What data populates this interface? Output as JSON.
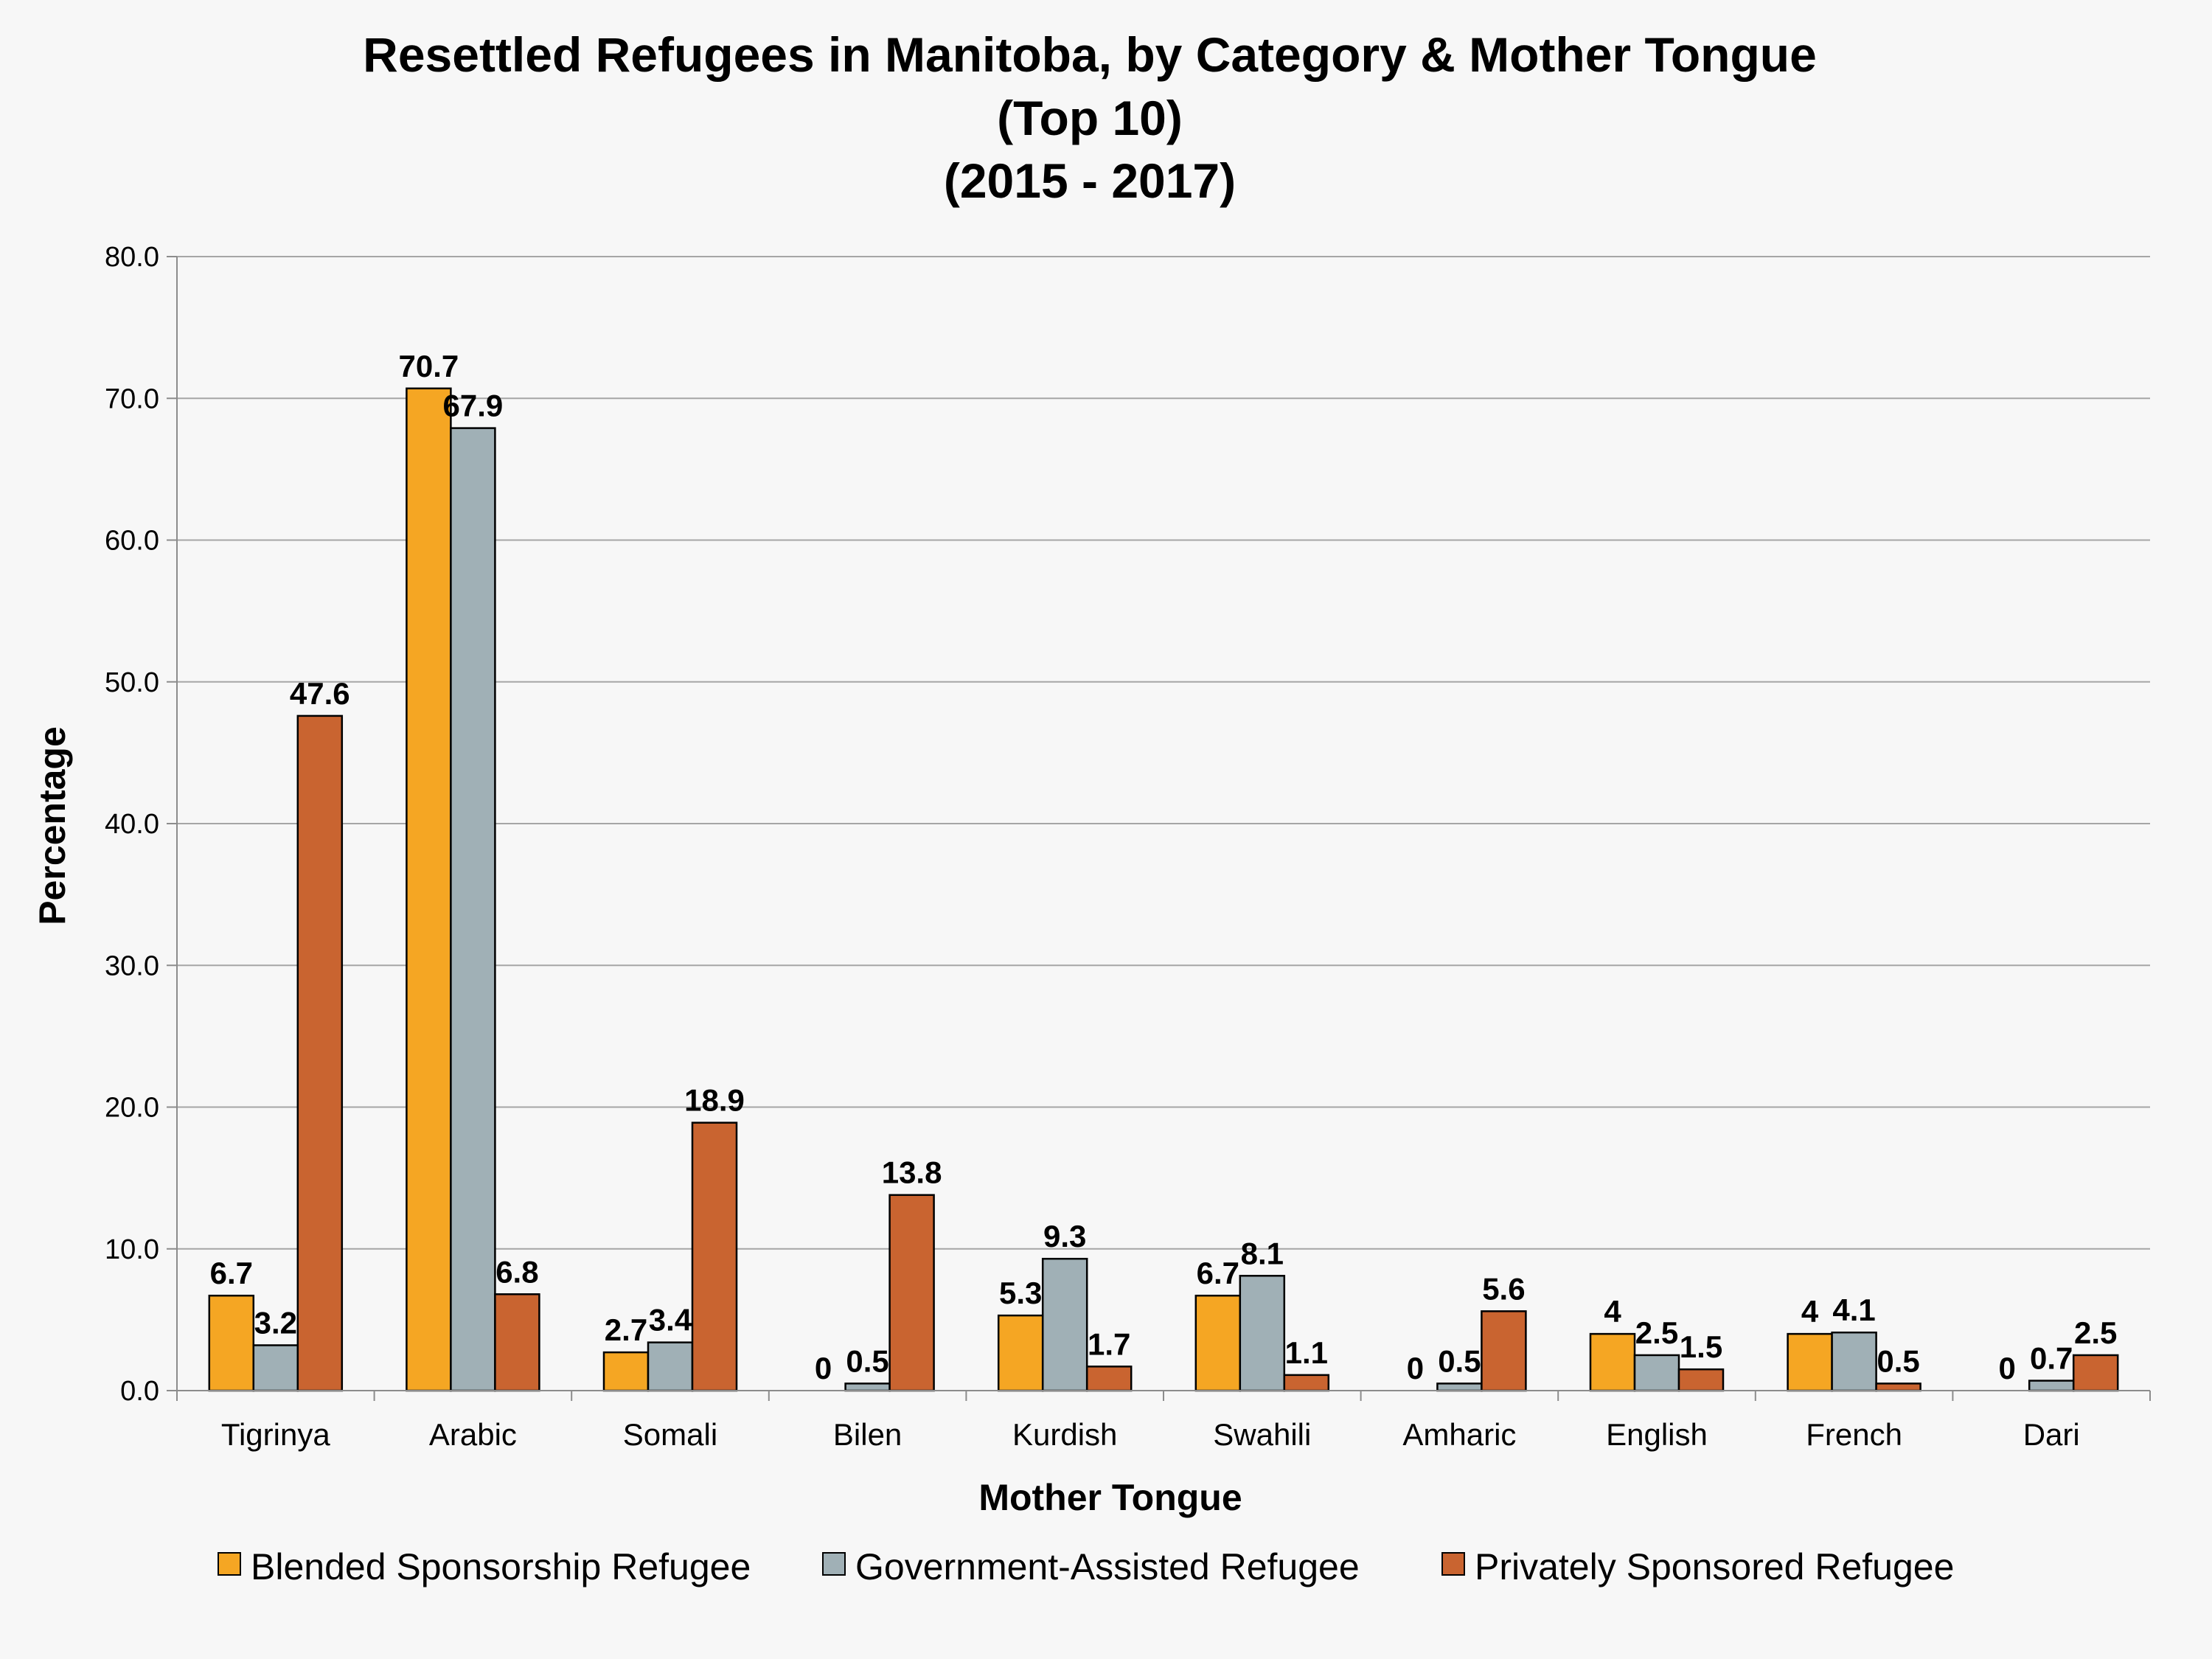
{
  "chart_data": {
    "type": "bar",
    "title_lines": [
      "Resettled Refugees in Manitoba, by Category & Mother Tongue",
      "(Top 10)",
      "(2015 - 2017)"
    ],
    "xlabel": "Mother Tongue",
    "ylabel": "Percentage",
    "ylim": [
      0,
      80
    ],
    "ytick_step": 10,
    "ytick_labels": [
      "0.0",
      "10.0",
      "20.0",
      "30.0",
      "40.0",
      "50.0",
      "60.0",
      "70.0",
      "80.0"
    ],
    "grid": true,
    "legend_position": "bottom",
    "categories": [
      "Tigrinya",
      "Arabic",
      "Somali",
      "Bilen",
      "Kurdish",
      "Swahili",
      "Amharic",
      "English",
      "French",
      "Dari"
    ],
    "series": [
      {
        "name": "Blended Sponsorship Refugee",
        "color": "#f5a623",
        "values": [
          6.7,
          70.7,
          2.7,
          0,
          5.3,
          6.7,
          0,
          4,
          4,
          0
        ],
        "labels": [
          "6.7",
          "70.7",
          "2.7",
          "0",
          "5.3",
          "6.7",
          "0",
          "4",
          "4",
          "0"
        ]
      },
      {
        "name": "Government-Assisted Refugee",
        "color": "#a0b0b6",
        "values": [
          3.2,
          67.9,
          3.4,
          0.5,
          9.3,
          8.1,
          0.5,
          2.5,
          4.1,
          0.7
        ],
        "labels": [
          "3.2",
          "67.9",
          "3.4",
          "0.5",
          "9.3",
          "8.1",
          "0.5",
          "2.5",
          "4.1",
          "0.7"
        ]
      },
      {
        "name": "Privately Sponsored Refugee",
        "color": "#c96430",
        "values": [
          47.6,
          6.8,
          18.9,
          13.8,
          1.7,
          1.1,
          5.6,
          1.5,
          0.5,
          2.5
        ],
        "labels": [
          "47.6",
          "6.8",
          "18.9",
          "13.8",
          "1.7",
          "1.1",
          "5.6",
          "1.5",
          "0.5",
          "2.5"
        ]
      }
    ]
  }
}
